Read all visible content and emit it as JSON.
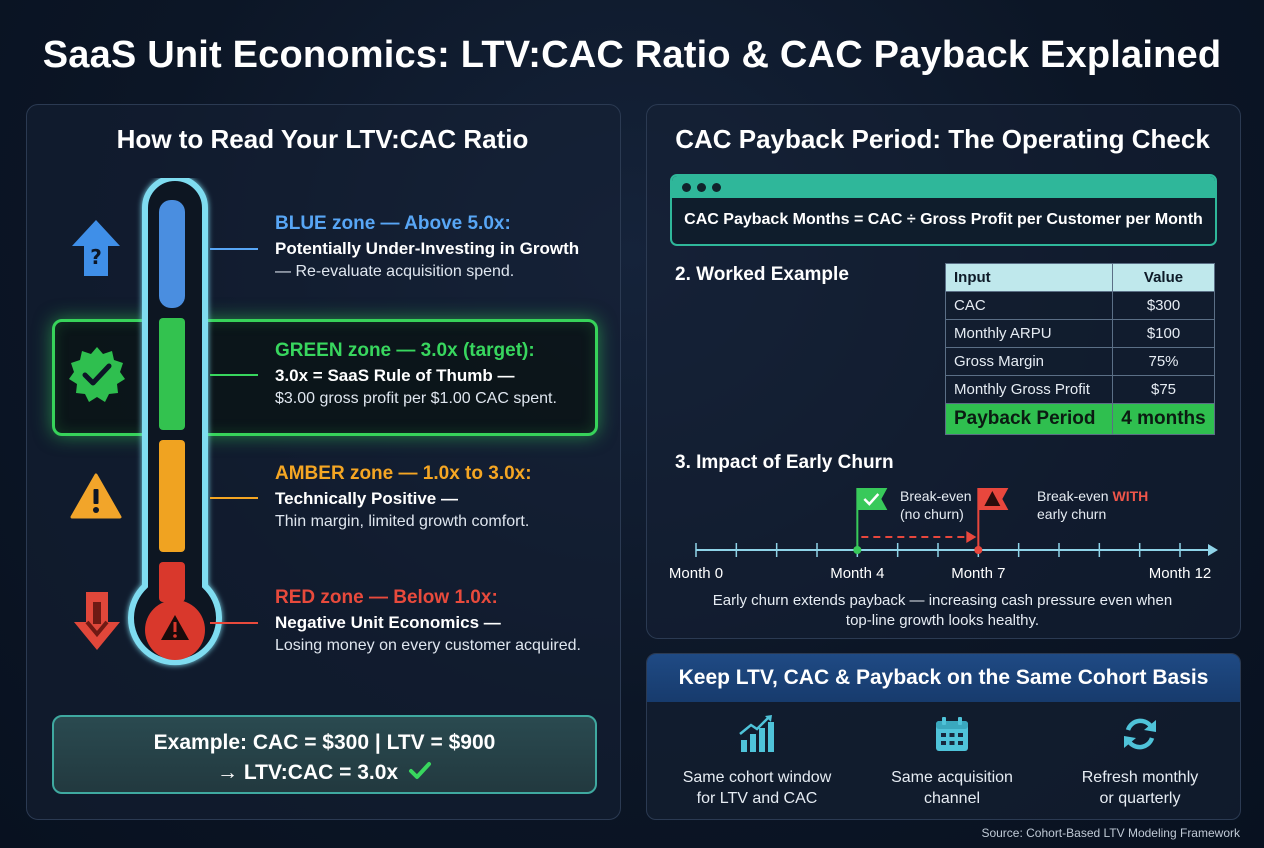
{
  "title": "SaaS Unit Economics: LTV:CAC Ratio & CAC Payback Explained",
  "left_panel": {
    "title": "How to Read Your LTV:CAC Ratio",
    "zones": [
      {
        "head": "BLUE zone — Above 5.0x:",
        "line1": "Potentially Under-Investing in Growth",
        "line2": "— Re-evaluate acquisition spend.",
        "color": "#58a6f5",
        "icon": "question-arrow-up-icon"
      },
      {
        "head": "GREEN zone — 3.0x (target):",
        "line1": "3.0x = SaaS Rule of Thumb —",
        "line2": "$3.00 gross profit per $1.00 CAC spent.",
        "color": "#38d65e",
        "icon": "check-badge-icon"
      },
      {
        "head": "AMBER zone — 1.0x to 3.0x:",
        "line1": "Technically Positive —",
        "line2": "Thin margin, limited growth comfort.",
        "color": "#f5a623",
        "icon": "warning-triangle-icon"
      },
      {
        "head": "RED zone — Below 1.0x:",
        "line1": "Negative Unit Economics —",
        "line2": "Losing money on every customer acquired.",
        "color": "#e84a3c",
        "icon": "arrow-down-icon"
      }
    ],
    "example": {
      "line1": "Example: CAC = $300 | LTV = $900",
      "line2": "→ LTV:CAC = 3.0x"
    }
  },
  "right_panel": {
    "title": "CAC Payback Period: The Operating Check",
    "formula": "CAC Payback Months = CAC ÷ Gross Profit per Customer per Month",
    "worked_example": {
      "title": "2. Worked Example",
      "headers": [
        "Input",
        "Value"
      ],
      "rows": [
        {
          "input": "CAC",
          "value": "$300"
        },
        {
          "input": "Monthly ARPU",
          "value": "$100"
        },
        {
          "input": "Gross Margin",
          "value": "75%"
        },
        {
          "input": "Monthly Gross Profit",
          "value": "$75"
        }
      ],
      "result": {
        "input": "Payback Period",
        "value": "4 months"
      }
    },
    "churn": {
      "title": "3. Impact of Early Churn",
      "timeline": {
        "min": 0,
        "max": 12,
        "labels": [
          {
            "month": 0,
            "text": "Month 0"
          },
          {
            "month": 4,
            "text": "Month 4"
          },
          {
            "month": 7,
            "text": "Month 7"
          },
          {
            "month": 12,
            "text": "Month 12"
          }
        ]
      },
      "markers": [
        {
          "month": 4,
          "label_a": "Break-even",
          "label_b": "(no churn)",
          "color": "#38c95a"
        },
        {
          "month": 7,
          "label_a": "Break-even",
          "label_hl": "WITH",
          "label_b": "early churn",
          "color": "#e8473d"
        }
      ],
      "note_line1": "Early churn extends payback — increasing cash pressure even when",
      "note_line2": "top-line growth looks healthy."
    }
  },
  "cohort": {
    "title": "Keep LTV, CAC & Payback on the Same Cohort Basis",
    "items": [
      {
        "line1": "Same cohort window",
        "line2": "for LTV and CAC",
        "icon": "bar-chart-icon"
      },
      {
        "line1": "Same acquisition",
        "line2": "channel",
        "icon": "calendar-icon"
      },
      {
        "line1": "Refresh monthly",
        "line2": "or quarterly",
        "icon": "refresh-icon"
      }
    ]
  },
  "source": "Source: Cohort-Based LTV Modeling Framework"
}
